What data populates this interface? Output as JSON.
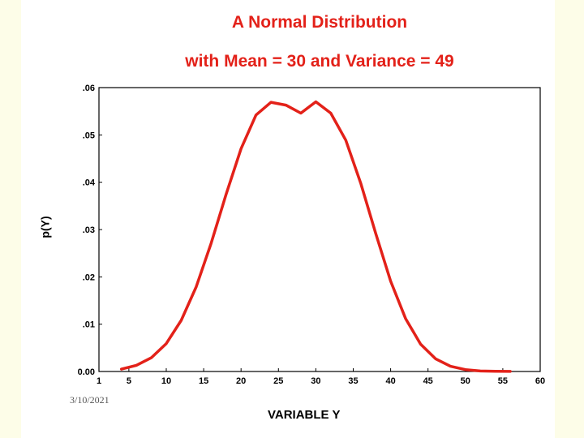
{
  "slide": {
    "title_line1": "A Normal Distribution",
    "title_line2": "with Mean = 30 and Variance = 49",
    "date": "3/10/2021"
  },
  "chart_data": {
    "type": "line",
    "title": "A Normal Distribution with Mean = 30 and Variance = 49",
    "xlabel": "VARIABLE Y",
    "ylabel": "p(Y)",
    "xlim": [
      1,
      60
    ],
    "ylim": [
      0,
      0.06
    ],
    "x_ticks": [
      1,
      5,
      10,
      15,
      20,
      25,
      30,
      35,
      40,
      45,
      50,
      55,
      60
    ],
    "x_tick_labels": [
      "1",
      "5",
      "10",
      "15",
      "20",
      "25",
      "30",
      "35",
      "40",
      "45",
      "50",
      "55",
      "60"
    ],
    "y_ticks": [
      0,
      0.01,
      0.02,
      0.03,
      0.04,
      0.05,
      0.06
    ],
    "y_tick_labels": [
      "0.00",
      ".01",
      ".02",
      ".03",
      ".04",
      ".05",
      ".06"
    ],
    "line_color": "#e32119",
    "series": [
      {
        "name": "p(Y)",
        "x": [
          4,
          6,
          8,
          10,
          12,
          14,
          16,
          18,
          20,
          22,
          24,
          26,
          28,
          30,
          32,
          34,
          36,
          38,
          40,
          42,
          44,
          46,
          48,
          50,
          52,
          54,
          56
        ],
        "y": [
          0.0005,
          0.0013,
          0.0029,
          0.0059,
          0.0108,
          0.0179,
          0.0271,
          0.0374,
          0.0471,
          0.0542,
          0.0569,
          0.0563,
          0.0546,
          0.057,
          0.0546,
          0.0489,
          0.0398,
          0.0292,
          0.0191,
          0.0112,
          0.0058,
          0.0027,
          0.0011,
          0.0004,
          0.0001,
          3e-05,
          1e-05
        ]
      }
    ]
  }
}
